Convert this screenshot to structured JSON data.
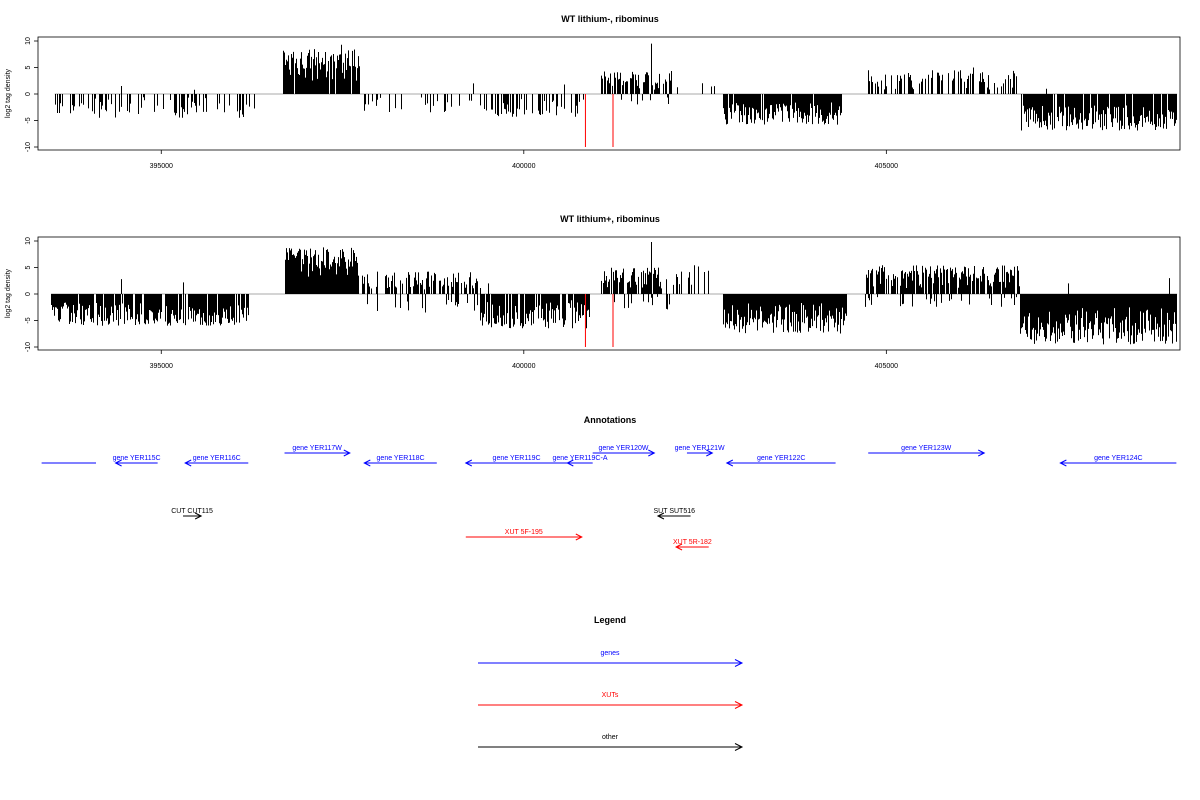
{
  "chart_data": [
    {
      "type": "bar",
      "title": "WT lithium-, ribominus",
      "ylabel": "log2 tag density",
      "xlabel": "",
      "xlim": [
        393300,
        409050
      ],
      "ylim": [
        -10,
        10
      ],
      "yticks": [
        10,
        5,
        0,
        -5,
        -10
      ],
      "xticks": [
        395000,
        400000,
        405000
      ],
      "grid": false,
      "bar_color": "#000000",
      "highlight_color": "#ff0000",
      "segments": [
        {
          "x0": 393530,
          "x1": 396320,
          "sign": -1,
          "density": 0.34,
          "amp": [
            0.6,
            4.5
          ],
          "pos_spikes": [
            [
              394440,
              1.5
            ],
            [
              395450,
              0.8
            ]
          ]
        },
        {
          "x0": 396680,
          "x1": 397730,
          "sign": 1,
          "density": 0.95,
          "amp": [
            2.5,
            8.5
          ],
          "pos_spikes": [
            [
              397480,
              9.3
            ]
          ]
        },
        {
          "x0": 397800,
          "x1": 399250,
          "sign": -1,
          "density": 0.22,
          "amp": [
            0.5,
            3.5
          ],
          "pos_spikes": []
        },
        {
          "x0": 399250,
          "x1": 400850,
          "sign": -1,
          "density": 0.45,
          "amp": [
            0.8,
            4.3
          ],
          "pos_spikes": [
            [
              399300,
              2.0
            ],
            [
              400550,
              1.8
            ]
          ]
        },
        {
          "x0": 401070,
          "x1": 402050,
          "sign": 1,
          "density": 0.6,
          "amp": [
            0.8,
            4.5
          ],
          "pos_spikes": [
            [
              401760,
              9.5
            ]
          ]
        },
        {
          "x0": 401100,
          "x1": 402050,
          "sign": -1,
          "density": 0.12,
          "amp": [
            0.5,
            2.0
          ],
          "pos_spikes": []
        },
        {
          "x0": 402050,
          "x1": 402850,
          "sign": 1,
          "density": 0.1,
          "amp": [
            0.8,
            2.5
          ],
          "pos_spikes": []
        },
        {
          "x0": 402750,
          "x1": 404380,
          "sign": -1,
          "density": 0.95,
          "amp": [
            1.5,
            5.8
          ],
          "pos_spikes": []
        },
        {
          "x0": 404730,
          "x1": 406800,
          "sign": 1,
          "density": 0.45,
          "amp": [
            0.8,
            4.5
          ],
          "pos_spikes": [
            [
              406200,
              5.0
            ]
          ]
        },
        {
          "x0": 406860,
          "x1": 409000,
          "sign": -1,
          "density": 0.95,
          "amp": [
            2.0,
            7.0
          ],
          "pos_spikes": [
            [
              407200,
              1.0
            ]
          ]
        }
      ],
      "red_lines": [
        400850,
        401230
      ]
    },
    {
      "type": "bar",
      "title": "WT lithium+, ribominus",
      "ylabel": "log2 tag density",
      "xlabel": "",
      "xlim": [
        393300,
        409050
      ],
      "ylim": [
        -10,
        10
      ],
      "yticks": [
        10,
        5,
        0,
        -5,
        -10
      ],
      "xticks": [
        395000,
        400000,
        405000
      ],
      "grid": false,
      "bar_color": "#000000",
      "highlight_color": "#ff0000",
      "segments": [
        {
          "x0": 393480,
          "x1": 396200,
          "sign": -1,
          "density": 0.9,
          "amp": [
            1.5,
            6.0
          ],
          "pos_spikes": [
            [
              394450,
              2.8
            ],
            [
              395300,
              2.2
            ]
          ]
        },
        {
          "x0": 396700,
          "x1": 397700,
          "sign": 1,
          "density": 1.0,
          "amp": [
            3.0,
            8.8
          ],
          "pos_spikes": []
        },
        {
          "x0": 397700,
          "x1": 399400,
          "sign": 1,
          "density": 0.55,
          "amp": [
            0.8,
            4.3
          ],
          "pos_spikes": []
        },
        {
          "x0": 397800,
          "x1": 399400,
          "sign": -1,
          "density": 0.2,
          "amp": [
            0.5,
            3.5
          ],
          "pos_spikes": []
        },
        {
          "x0": 399400,
          "x1": 400900,
          "sign": -1,
          "density": 0.85,
          "amp": [
            1.0,
            6.5
          ],
          "pos_spikes": [
            [
              399500,
              2.0
            ]
          ]
        },
        {
          "x0": 401050,
          "x1": 401900,
          "sign": 1,
          "density": 0.8,
          "amp": [
            1.0,
            5.0
          ],
          "pos_spikes": [
            [
              401760,
              9.8
            ]
          ]
        },
        {
          "x0": 401050,
          "x1": 402100,
          "sign": -1,
          "density": 0.25,
          "amp": [
            0.5,
            3.0
          ],
          "pos_spikes": []
        },
        {
          "x0": 401950,
          "x1": 402700,
          "sign": 1,
          "density": 0.3,
          "amp": [
            0.8,
            5.5
          ],
          "pos_spikes": []
        },
        {
          "x0": 402750,
          "x1": 404450,
          "sign": -1,
          "density": 1.0,
          "amp": [
            1.5,
            7.5
          ],
          "pos_spikes": []
        },
        {
          "x0": 404700,
          "x1": 406850,
          "sign": 1,
          "density": 0.8,
          "amp": [
            1.0,
            5.5
          ],
          "pos_spikes": []
        },
        {
          "x0": 404700,
          "x1": 406850,
          "sign": -1,
          "density": 0.15,
          "amp": [
            0.5,
            2.5
          ],
          "pos_spikes": []
        },
        {
          "x0": 406850,
          "x1": 409000,
          "sign": -1,
          "density": 1.0,
          "amp": [
            2.5,
            9.5
          ],
          "pos_spikes": [
            [
              407500,
              2.0
            ],
            [
              408900,
              3.0
            ]
          ]
        }
      ],
      "red_lines": [
        400850,
        401230
      ]
    },
    {
      "type": "table",
      "title": "Annotations",
      "xlim": [
        393300,
        409050
      ],
      "items": [
        {
          "label": "",
          "start": 393350,
          "end": 394100,
          "strand": "-",
          "color": "#0000ff",
          "row": 0,
          "arrowhead": false
        },
        {
          "label": "gene YER115C",
          "start": 394370,
          "end": 394950,
          "strand": "-",
          "color": "#0000ff",
          "row": 0
        },
        {
          "label": "gene YER116C",
          "start": 395330,
          "end": 396200,
          "strand": "-",
          "color": "#0000ff",
          "row": 0
        },
        {
          "label": "gene YER117W",
          "start": 396700,
          "end": 397600,
          "strand": "+",
          "color": "#0000ff",
          "row": -1
        },
        {
          "label": "gene YER118C",
          "start": 397800,
          "end": 398800,
          "strand": "-",
          "color": "#0000ff",
          "row": 0
        },
        {
          "label": "gene YER119C",
          "start": 399200,
          "end": 400600,
          "strand": "-",
          "color": "#0000ff",
          "row": 0
        },
        {
          "label": "gene YER119C-A",
          "start": 400600,
          "end": 400950,
          "strand": "-",
          "color": "#0000ff",
          "row": 0
        },
        {
          "label": "gene YER120W",
          "start": 400950,
          "end": 401800,
          "strand": "+",
          "color": "#0000ff",
          "row": -1
        },
        {
          "label": "gene YER121W",
          "start": 402250,
          "end": 402600,
          "strand": "+",
          "color": "#0000ff",
          "row": -1
        },
        {
          "label": "gene YER122C",
          "start": 402800,
          "end": 404300,
          "strand": "-",
          "color": "#0000ff",
          "row": 0
        },
        {
          "label": "gene YER123W",
          "start": 404750,
          "end": 406350,
          "strand": "+",
          "color": "#0000ff",
          "row": -1
        },
        {
          "label": "gene YER124C",
          "start": 407400,
          "end": 409000,
          "strand": "-",
          "color": "#0000ff",
          "row": 0
        },
        {
          "label": "CUT CUT115",
          "start": 395300,
          "end": 395550,
          "strand": "+",
          "color": "#000000",
          "row": 1
        },
        {
          "label": "SUT SUT516",
          "start": 401850,
          "end": 402300,
          "strand": "-",
          "color": "#000000",
          "row": 1
        },
        {
          "label": "XUT 5F-195",
          "start": 399200,
          "end": 400800,
          "strand": "+",
          "color": "#ff0000",
          "row": 2
        },
        {
          "label": "XUT 5R-182",
          "start": 402100,
          "end": 402550,
          "strand": "-",
          "color": "#ff0000",
          "row": 3
        }
      ]
    }
  ],
  "legend": {
    "title": "Legend",
    "entries": [
      {
        "label": "genes",
        "color": "#0000ff",
        "text_color": "#0000ff"
      },
      {
        "label": "XUTs",
        "color": "#ff0000",
        "text_color": "#ff0000"
      },
      {
        "label": "other",
        "color": "#000000",
        "text_color": "#000000"
      }
    ]
  }
}
